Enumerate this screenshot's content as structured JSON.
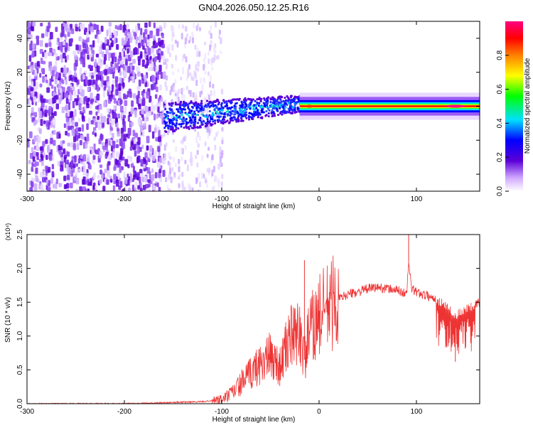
{
  "figure": {
    "title": "GN04.2026.050.12.25.R16"
  },
  "chart_data": [
    {
      "type": "heatmap",
      "title": "GN04.2026.050.12.25.R16",
      "xlabel": "Height of straight line (km)",
      "ylabel": "Frequency (Hz)",
      "xlim": [
        -300,
        165
      ],
      "ylim": [
        -50,
        50
      ],
      "x_ticks": [
        -300,
        -200,
        -100,
        0,
        100
      ],
      "y_ticks": [
        -40,
        -20,
        0,
        20,
        40
      ],
      "x_tick_labels": [
        "-300",
        "-200",
        "-100",
        "0",
        "100"
      ],
      "y_tick_labels": [
        "-40",
        "-20",
        "0",
        "20",
        "40"
      ],
      "grid": false,
      "colorbar": {
        "label": "Normalized spectral amplitude",
        "range": [
          0,
          1
        ],
        "ticks": [
          0.0,
          0.2,
          0.4,
          0.6,
          0.8
        ],
        "tick_labels": [
          "0.0",
          "0.2",
          "0.4",
          "0.6",
          "0.8"
        ],
        "colormap": [
          "#ffffff",
          "#5a00d8",
          "#0000ff",
          "#00e0ff",
          "#00ff00",
          "#ffff00",
          "#ff8000",
          "#ff0000",
          "#ff0080"
        ]
      },
      "regions": [
        {
          "x": [
            -300,
            -160
          ],
          "freq_spread": 50,
          "amplitude": 0.1,
          "description_level": "noise"
        },
        {
          "x": [
            -160,
            -100
          ],
          "freq_spread": 50,
          "amplitude": 0.05,
          "description_level": "faint"
        },
        {
          "x": [
            -160,
            -20
          ],
          "center_freq": [
            -6,
            2
          ],
          "freq_spread": 8,
          "amplitude": 0.3
        },
        {
          "x": [
            -20,
            165
          ],
          "center_freq": [
            0,
            0
          ],
          "freq_spread": 2,
          "amplitude": 0.9
        }
      ]
    },
    {
      "type": "line",
      "xlabel": "Height of straight line (km)",
      "ylabel": "SNR (10 * v/v)",
      "y_multiplier": "(x10⁴)",
      "xlim": [
        -300,
        165
      ],
      "ylim": [
        0,
        2.5
      ],
      "x_ticks": [
        -300,
        -200,
        -100,
        0,
        100
      ],
      "y_ticks": [
        0.0,
        0.5,
        1.0,
        1.5,
        2.0,
        2.5
      ],
      "x_tick_labels": [
        "-300",
        "-200",
        "-100",
        "0",
        "100"
      ],
      "y_tick_labels": [
        "0.0",
        "0.5",
        "1.0",
        "1.5",
        "2.0",
        "2.5"
      ],
      "grid": false,
      "color": "#ee3333",
      "x": [
        -300,
        -250,
        -200,
        -150,
        -120,
        -100,
        -90,
        -80,
        -70,
        -60,
        -50,
        -40,
        -30,
        -25,
        -20,
        -15,
        -10,
        0,
        10,
        20,
        30,
        40,
        50,
        60,
        70,
        80,
        90,
        92,
        95,
        100,
        110,
        120,
        130,
        140,
        150,
        160,
        165
      ],
      "values": [
        0.0,
        0.0,
        0.0,
        0.02,
        0.03,
        0.06,
        0.15,
        0.3,
        0.45,
        0.6,
        0.7,
        0.55,
        1.0,
        0.95,
        1.1,
        0.65,
        1.05,
        1.3,
        1.45,
        1.55,
        1.62,
        1.65,
        1.7,
        1.72,
        1.7,
        1.68,
        1.62,
        2.1,
        1.7,
        1.65,
        1.6,
        1.55,
        1.45,
        1.3,
        1.4,
        1.45,
        1.5
      ],
      "spikes": [
        {
          "x": -15,
          "value": 2.12
        },
        {
          "x": -30,
          "value": 0.85
        },
        {
          "x": 92,
          "value": 2.5
        },
        {
          "x": 140,
          "value": 0.62
        }
      ]
    }
  ]
}
